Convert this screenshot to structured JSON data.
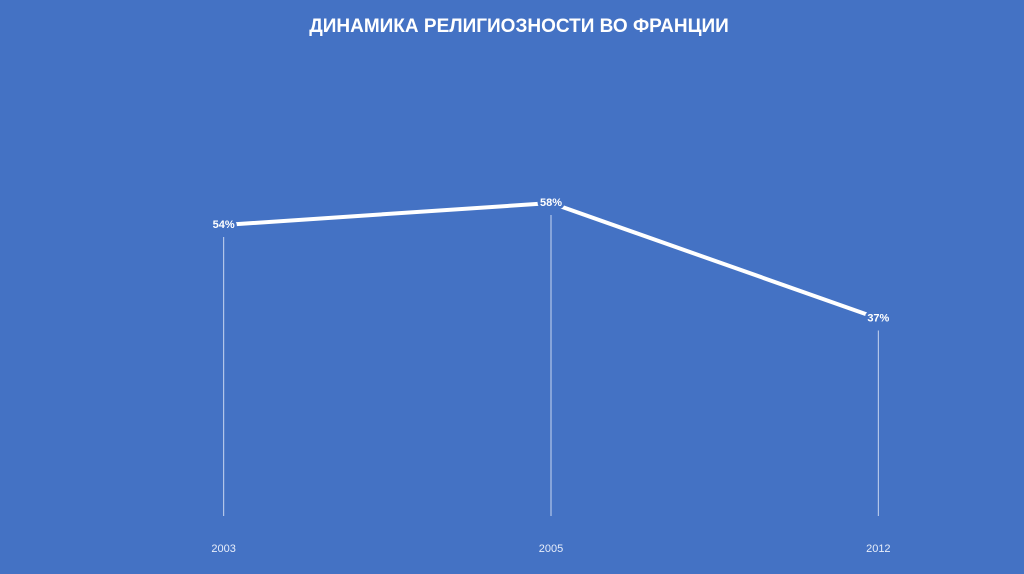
{
  "chart_data": {
    "type": "line",
    "title": "ДИНАМИКА РЕЛИГИОЗНОСТИ ВО ФРАНЦИИ",
    "categories": [
      "2003",
      "2005",
      "2012"
    ],
    "values": [
      54,
      58,
      37
    ],
    "value_labels": [
      "54%",
      "58%",
      "37%"
    ],
    "color": "#ffffff"
  }
}
